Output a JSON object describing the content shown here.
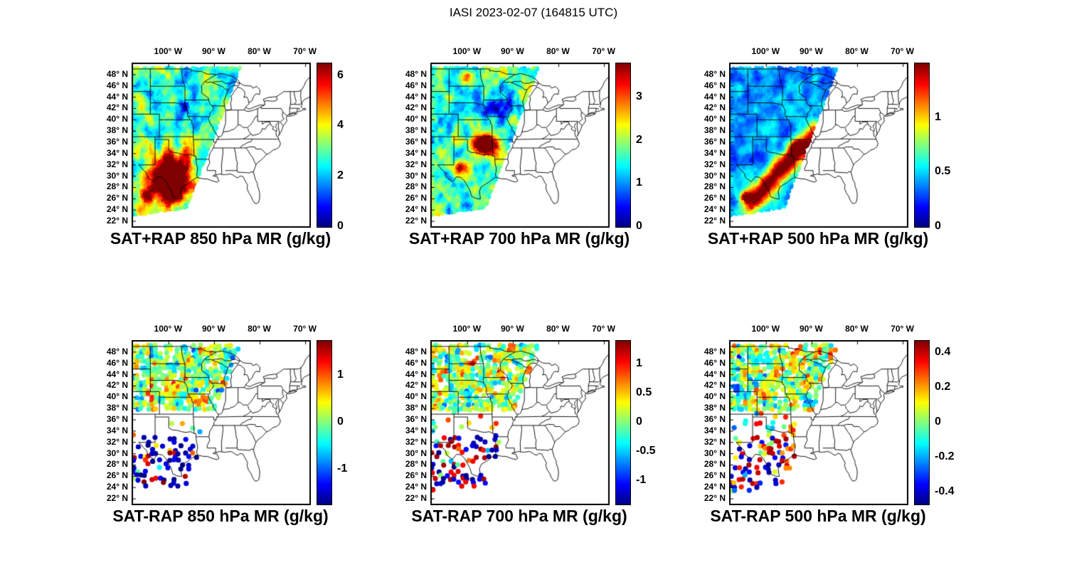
{
  "figure_title": "IASI 2023-02-07 (164815 UTC)",
  "colors": {
    "background": "#ffffff",
    "line": "#000000",
    "colormap_low": "#000080",
    "colormap_high": "#800000"
  },
  "axes": {
    "lon_tick_labels": [
      "100° W",
      "90° W",
      "80° W",
      "70° W"
    ],
    "lon_tick_deg_w": [
      100,
      90,
      80,
      70
    ],
    "lat_tick_labels": [
      "48° N",
      "46° N",
      "44° N",
      "42° N",
      "40° N",
      "38° N",
      "36° N",
      "34° N",
      "32° N",
      "30° N",
      "28° N",
      "26° N",
      "24° N",
      "22° N"
    ],
    "lat_tick_deg_n": [
      48,
      46,
      44,
      42,
      40,
      38,
      36,
      34,
      32,
      30,
      28,
      26,
      24,
      22
    ]
  },
  "chart_data": [
    {
      "type": "heatmap",
      "position": "top-left",
      "title": "SAT+RAP 850 hPa MR (g/kg)",
      "quantity": "SAT+RAP mixing ratio",
      "level_hpa": 850,
      "units": "g/kg",
      "colormap": "jet",
      "value_range": [
        0,
        6.5
      ],
      "colorbar_ticks": [
        "0",
        "2",
        "4",
        "6"
      ],
      "colorbar_tick_values": [
        0,
        2,
        4,
        6
      ],
      "summary": "Satellite swath over central US; mostly 1-4 g/kg with dark-red maximum >6 g/kg over Texas; no data east of swath edge"
    },
    {
      "type": "heatmap",
      "position": "top-middle",
      "title": "SAT+RAP 700 hPa MR (g/kg)",
      "quantity": "SAT+RAP mixing ratio",
      "level_hpa": 700,
      "units": "g/kg",
      "colormap": "jet",
      "value_range": [
        0,
        3.8
      ],
      "colorbar_ticks": [
        "0",
        "1",
        "2",
        "3"
      ],
      "colorbar_tick_values": [
        0,
        1,
        2,
        3
      ],
      "summary": "Mostly 0.5-2 g/kg; dark-red maximum near 3.8 g/kg over Oklahoma/Arkansas; dark blue band through upper Midwest"
    },
    {
      "type": "heatmap",
      "position": "top-right",
      "title": "SAT+RAP 500 hPa MR (g/kg)",
      "quantity": "SAT+RAP mixing ratio",
      "level_hpa": 500,
      "units": "g/kg",
      "colormap": "jet",
      "value_range": [
        0,
        1.5
      ],
      "colorbar_ticks": [
        "0",
        "0.5",
        "1"
      ],
      "colorbar_tick_values": [
        0,
        0.5,
        1
      ],
      "summary": "Mostly <0.5 g/kg (blue); warm diagonal band >1 g/kg from south Texas toward Arkansas with dark-red maximum near 35N 93W"
    },
    {
      "type": "heatmap",
      "position": "bottom-left",
      "title": "SAT-RAP 850 hPa MR (g/kg)",
      "quantity": "SAT-RAP mixing ratio difference",
      "level_hpa": 850,
      "units": "g/kg",
      "colormap": "jet",
      "value_range": [
        -1.75,
        1.75
      ],
      "colorbar_ticks": [
        "1",
        "0",
        "-1"
      ],
      "colorbar_tick_values": [
        1,
        0,
        -1
      ],
      "summary": "Scattered retrieval-minus-model differences, mostly -0.5 to +1 over northern plains; sparse strongly negative (dark blue) points over south Texas"
    },
    {
      "type": "heatmap",
      "position": "bottom-middle",
      "title": "SAT-RAP 700 hPa MR (g/kg)",
      "quantity": "SAT-RAP mixing ratio difference",
      "level_hpa": 700,
      "units": "g/kg",
      "colormap": "jet",
      "value_range": [
        -1.4,
        1.4
      ],
      "colorbar_ticks": [
        "1",
        "0.5",
        "0",
        "-0.5",
        "-1"
      ],
      "colorbar_tick_values": [
        1,
        0.5,
        0,
        -0.5,
        -1
      ],
      "summary": "Differences mostly within ±1; orange/red patches over upper Midwest; mixed strong positive and negative points over Texas and Gulf coast"
    },
    {
      "type": "heatmap",
      "position": "bottom-right",
      "title": "SAT-RAP 500 hPa MR (g/kg)",
      "quantity": "SAT-RAP mixing ratio difference",
      "level_hpa": 500,
      "units": "g/kg",
      "colormap": "jet",
      "value_range": [
        -0.47,
        0.47
      ],
      "colorbar_ticks": [
        "0.4",
        "0.2",
        "0",
        "-0.2",
        "-0.4"
      ],
      "colorbar_tick_values": [
        0.4,
        0.2,
        0,
        -0.2,
        -0.4
      ],
      "summary": "Differences mostly within ±0.4; strong red/orange and deep blue patches over upper Midwest; mixed colorful points over Texas"
    }
  ]
}
